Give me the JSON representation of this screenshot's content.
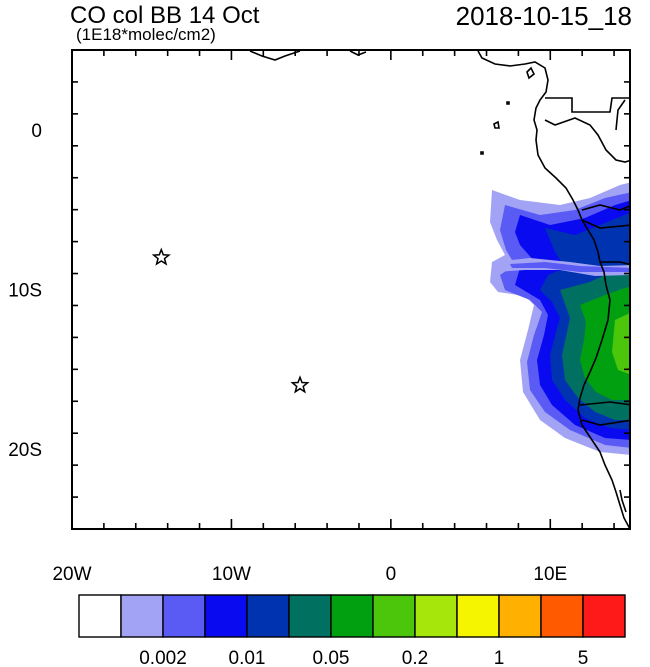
{
  "header": {
    "title": "CO col BB 14 Oct",
    "units": "(1E18*molec/cm2)",
    "timestamp": "2018-10-15_18"
  },
  "map": {
    "lon_range": [
      -20,
      15
    ],
    "lat_range": [
      -25,
      5
    ],
    "x_ticks": [
      {
        "value": -20,
        "label": "20W"
      },
      {
        "value": -10,
        "label": "10W"
      },
      {
        "value": 0,
        "label": "0"
      },
      {
        "value": 10,
        "label": "10E"
      }
    ],
    "y_ticks": [
      {
        "value": 0,
        "label": "0"
      },
      {
        "value": -10,
        "label": "10S"
      },
      {
        "value": -20,
        "label": "20S"
      }
    ],
    "markers": [
      {
        "name": "star-marker-ascension",
        "lon": -14.4,
        "lat": -8.0,
        "symbol": "star"
      },
      {
        "name": "star-marker-st-helena",
        "lon": -5.7,
        "lat": -16.0,
        "symbol": "star"
      }
    ]
  },
  "colorbar": {
    "colors": [
      "#ffffff",
      "#a3a3f5",
      "#5a5af5",
      "#0a0af0",
      "#0033b0",
      "#007060",
      "#00a010",
      "#4cc60a",
      "#a6e60a",
      "#f5f500",
      "#ffb000",
      "#ff5a00",
      "#ff1a1a"
    ],
    "labels": [
      {
        "text": "0.002",
        "boundary": 2
      },
      {
        "text": "0.01",
        "boundary": 4
      },
      {
        "text": "0.05",
        "boundary": 6
      },
      {
        "text": "0.2",
        "boundary": 8
      },
      {
        "text": "1",
        "boundary": 10
      },
      {
        "text": "5",
        "boundary": 12
      }
    ]
  }
}
